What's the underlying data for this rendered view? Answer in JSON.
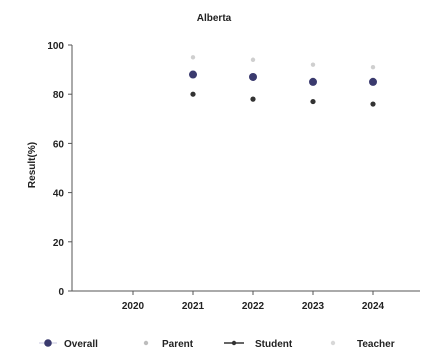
{
  "chart_data": {
    "type": "scatter",
    "title": "Alberta",
    "xlabel": "",
    "ylabel": "Result(%)",
    "x": [
      "2020",
      "2021",
      "2022",
      "2023",
      "2024"
    ],
    "ylim": [
      0,
      100
    ],
    "yticks": [
      0,
      20,
      40,
      60,
      80,
      100
    ],
    "grid": false,
    "legend": "bottom",
    "series": [
      {
        "name": "Overall",
        "values": [
          null,
          88,
          87,
          85,
          85
        ],
        "color": "#3a3a6e",
        "marker": "large-dot"
      },
      {
        "name": "Parent",
        "values": [
          null,
          95,
          94,
          92,
          91
        ],
        "color": "#cfcfcf",
        "marker": "small-dot"
      },
      {
        "name": "Student",
        "values": [
          null,
          80,
          78,
          77,
          76
        ],
        "color": "#333333",
        "marker": "line-dot"
      },
      {
        "name": "Teacher",
        "values": [
          null,
          88,
          87,
          86,
          86
        ],
        "color": "#e6e6e6",
        "marker": "small-dot"
      }
    ]
  }
}
